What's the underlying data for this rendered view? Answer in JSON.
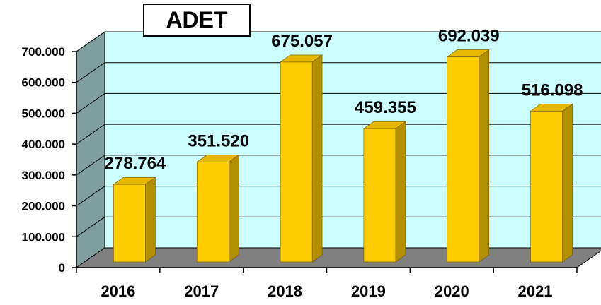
{
  "chart_data": {
    "type": "bar",
    "title": "ADET",
    "categories": [
      "2016",
      "2017",
      "2018",
      "2019",
      "2020",
      "2021"
    ],
    "values": [
      278764,
      351520,
      675057,
      459355,
      692039,
      516098
    ],
    "value_labels": [
      "278.764",
      "351.520",
      "675.057",
      "459.355",
      "692.039",
      "516.098"
    ],
    "ylim": [
      0,
      700000
    ],
    "yticks": [
      0,
      100000,
      200000,
      300000,
      400000,
      500000,
      600000,
      700000
    ],
    "ytick_labels": [
      "0",
      "100.000",
      "200.000",
      "300.000",
      "400.000",
      "500.000",
      "600.000",
      "700.000"
    ],
    "xlabel": "",
    "ylabel": "",
    "grid": true,
    "legend": "none",
    "style": "3d",
    "colors": {
      "bar_front": "#FFCC00",
      "bar_side": "#B38F00",
      "bar_top": "#E6B800",
      "back_wall": "#CCFFFF",
      "side_wall": "#7F9F9F",
      "floor": "#808080"
    }
  }
}
